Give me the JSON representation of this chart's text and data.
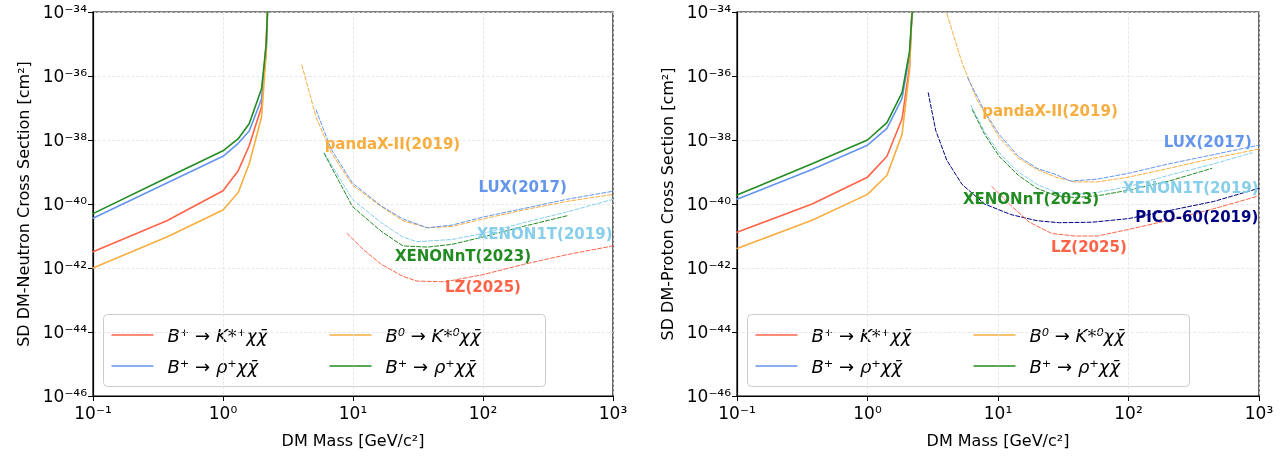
{
  "chart_data": [
    {
      "type": "line",
      "xlabel": "DM Mass [GeV/c²]",
      "ylabel": "SD DM-Neutron Cross Section [cm²]",
      "log": "xy",
      "grid": true,
      "legend": "bottom left",
      "xlim": [
        0.1,
        1000
      ],
      "xticks": [
        {
          "value": 0.1,
          "label": "10⁻¹"
        },
        {
          "value": 1,
          "label": "10⁰"
        },
        {
          "value": 10,
          "label": "10¹"
        },
        {
          "value": 100,
          "label": "10²"
        },
        {
          "value": 1000,
          "label": "10³"
        }
      ],
      "ylim": [
        1e-46,
        1e-34
      ],
      "yticks": [
        {
          "value": 1e-46,
          "label": "10⁻⁴⁶"
        },
        {
          "value": 1e-44,
          "label": "10⁻⁴⁴"
        },
        {
          "value": 1e-42,
          "label": "10⁻⁴²"
        },
        {
          "value": 1e-40,
          "label": "10⁻⁴⁰"
        },
        {
          "value": 1e-38,
          "label": "10⁻³⁸"
        },
        {
          "value": 1e-36,
          "label": "10⁻³⁶"
        },
        {
          "value": 1e-34,
          "label": "10⁻³⁴"
        }
      ],
      "series": [
        {
          "name": "B⁺ → K*⁺χχ̄",
          "color": "#ff6347",
          "line_style": "solid",
          "x": [
            0.1,
            0.37,
            1,
            1.31,
            1.59,
            1.98,
            2.15,
            2.19
          ],
          "values": [
            3.2e-42,
            3e-41,
            2.6e-40,
            1.1e-39,
            6.6e-39,
            1.1e-37,
            1.2e-35,
            1e-34
          ]
        },
        {
          "name": "B⁺ → ρ⁺χχ̄",
          "color": "#6495ed",
          "line_style": "solid",
          "x": [
            0.1,
            0.37,
            1,
            1.31,
            1.59,
            1.98,
            2.15,
            2.2
          ],
          "values": [
            3.6e-41,
            4.5e-40,
            3.1e-39,
            7.9e-39,
            1.9e-38,
            1.9e-37,
            5.4e-36,
            1e-34
          ]
        },
        {
          "name": "B⁰ → K*⁰χχ̄",
          "color": "#f8ad3f",
          "line_style": "solid",
          "x": [
            0.1,
            0.37,
            1,
            1.31,
            1.59,
            1.98,
            2.15,
            2.19
          ],
          "values": [
            1e-42,
            9.3e-42,
            6.5e-41,
            2.3e-40,
            1.8e-39,
            5.2e-38,
            5.4e-36,
            1e-34
          ]
        },
        {
          "name": "B⁺ → ρ⁺χχ̄",
          "color": "#228b22",
          "line_style": "solid",
          "x": [
            0.1,
            0.37,
            1,
            1.31,
            1.59,
            1.98,
            2.15,
            2.2
          ],
          "values": [
            5e-41,
            6.6e-40,
            4.6e-39,
            1.1e-38,
            3.2e-38,
            4e-37,
            1e-35,
            1e-34
          ]
        },
        {
          "name": "pandaX-II(2019)",
          "color": "#f8ad3f",
          "line_style": "dashed",
          "x": [
            4.04,
            5.2,
            6.8,
            9.9,
            16.5,
            24.2,
            37.5,
            58,
            100,
            205,
            440,
            1000
          ],
          "values": [
            2.2e-36,
            5.2e-38,
            4e-39,
            3.9e-40,
            8.3e-41,
            3e-41,
            1.8e-41,
            2e-41,
            3.4e-41,
            6.5e-41,
            1.2e-40,
            2e-40
          ]
        },
        {
          "name": "LUX(2017)",
          "color": "#6495ed",
          "line_style": "dashed",
          "x": [
            5.2,
            6.8,
            9.9,
            16.5,
            24.2,
            37.5,
            58,
            100,
            205,
            440,
            1000
          ],
          "values": [
            8.7e-38,
            5.1e-39,
            4.5e-40,
            8.7e-41,
            3.4e-41,
            1.8e-41,
            2.2e-41,
            3.9e-41,
            7.2e-41,
            1.4e-40,
            2.5e-40
          ]
        },
        {
          "name": "XENON1T(2019)",
          "color": "#87ceeb",
          "line_style": "dashed",
          "x": [
            6.0,
            9.9,
            16.5,
            24.2,
            31,
            58,
            100,
            205,
            440,
            1000
          ],
          "values": [
            4e-39,
            1.4e-40,
            2.6e-41,
            9.3e-42,
            6.6e-42,
            7.8e-42,
            1.2e-41,
            2.6e-41,
            5.6e-41,
            1.4e-40
          ]
        },
        {
          "name": "XENONnT(2023)",
          "color": "#228b22",
          "line_style": "dashed",
          "x": [
            6.0,
            9.9,
            16.5,
            24.2,
            37.5,
            58,
            100,
            205,
            455
          ],
          "values": [
            3.8e-39,
            8.3e-41,
            1.4e-41,
            4.9e-42,
            4.5e-42,
            5.5e-42,
            9.3e-42,
            2e-41,
            4.4e-41
          ]
        },
        {
          "name": "LZ(2025)",
          "color": "#ff6347",
          "line_style": "dashed",
          "x": [
            9.0,
            12.0,
            16.5,
            24.2,
            31,
            51,
            100,
            205,
            440,
            1000
          ],
          "values": [
            1.2e-41,
            3.8e-42,
            1.3e-42,
            5.5e-43,
            3.9e-43,
            3.7e-43,
            6.2e-43,
            1.3e-42,
            2.6e-42,
            4.9e-42
          ]
        }
      ]
    },
    {
      "type": "line",
      "xlabel": "DM Mass [GeV/c²]",
      "ylabel": "SD DM-Proton Cross Section [cm²]",
      "log": "xy",
      "grid": true,
      "legend": "bottom left",
      "xlim": [
        0.1,
        1000
      ],
      "xticks": [
        {
          "value": 0.1,
          "label": "10⁻¹"
        },
        {
          "value": 1,
          "label": "10⁰"
        },
        {
          "value": 10,
          "label": "10¹"
        },
        {
          "value": 100,
          "label": "10²"
        },
        {
          "value": 1000,
          "label": "10³"
        }
      ],
      "ylim": [
        1e-46,
        1e-34
      ],
      "yticks": [
        {
          "value": 1e-46,
          "label": "10⁻⁴⁶"
        },
        {
          "value": 1e-44,
          "label": "10⁻⁴⁴"
        },
        {
          "value": 1e-42,
          "label": "10⁻⁴²"
        },
        {
          "value": 1e-40,
          "label": "10⁻⁴⁰"
        },
        {
          "value": 1e-38,
          "label": "10⁻³⁸"
        },
        {
          "value": 1e-36,
          "label": "10⁻³⁶"
        },
        {
          "value": 1e-34,
          "label": "10⁻³⁴"
        }
      ],
      "series": [
        {
          "name": "B⁺ → K*⁺χχ̄",
          "color": "#ff6347",
          "line_style": "solid",
          "x": [
            0.1,
            0.376,
            1,
            1.41,
            1.84,
            2.1,
            2.19
          ],
          "values": [
            1.3e-41,
            1e-40,
            6.9e-40,
            3.1e-39,
            4.6e-38,
            2e-36,
            1e-34
          ]
        },
        {
          "name": "B⁺ → ρ⁺χχ̄",
          "color": "#6495ed",
          "line_style": "solid",
          "x": [
            0.1,
            0.376,
            1,
            1.41,
            1.84,
            2.1,
            2.2
          ],
          "values": [
            1.4e-40,
            1.2e-39,
            6.9e-39,
            2.3e-38,
            2e-37,
            4.5e-36,
            1e-34
          ]
        },
        {
          "name": "B⁰ → K*⁰χχ̄",
          "color": "#f8ad3f",
          "line_style": "solid",
          "x": [
            0.1,
            0.376,
            1,
            1.41,
            1.84,
            2.1,
            2.19
          ],
          "values": [
            4.1e-42,
            3.1e-41,
            2e-40,
            7.9e-40,
            1.5e-38,
            1.5e-36,
            1e-34
          ]
        },
        {
          "name": "B⁺ → ρ⁺χχ̄",
          "color": "#228b22",
          "line_style": "solid",
          "x": [
            0.1,
            0.376,
            1,
            1.41,
            1.84,
            2.1,
            2.2
          ],
          "values": [
            1.9e-40,
            1.8e-39,
            1e-38,
            3.5e-38,
            3e-37,
            5.9e-36,
            1e-34
          ]
        },
        {
          "name": "pandaX-II(2019)",
          "color": "#f8ad3f",
          "line_style": "dashed",
          "x": [
            4.06,
            5.3,
            6.9,
            10.2,
            14.3,
            19.9,
            27.8,
            38.8,
            57.7,
            100,
            204,
            450,
            1000
          ],
          "values": [
            8.7e-35,
            2.6e-36,
            1.8e-37,
            1.2e-38,
            2.7e-39,
            1.2e-39,
            6.9e-40,
            4.9e-40,
            4.9e-40,
            6.9e-40,
            1.3e-39,
            2.7e-39,
            5.2e-39
          ]
        },
        {
          "name": "LUX(2017)",
          "color": "#6495ed",
          "line_style": "dashed",
          "x": [
            5.85,
            7.9,
            10.2,
            14.3,
            19.9,
            27.8,
            36,
            57.7,
            100,
            204,
            450,
            1000
          ],
          "values": [
            8.9e-37,
            7.8e-38,
            1.5e-38,
            3.1e-39,
            1.3e-39,
            8.3e-40,
            5.2e-40,
            6e-40,
            9.1e-40,
            1.8e-39,
            3.5e-39,
            6.9e-39
          ]
        },
        {
          "name": "XENON1T(2019)",
          "color": "#87ceeb",
          "line_style": "dashed",
          "x": [
            6.2,
            7.9,
            10.2,
            14.3,
            19.9,
            27.8,
            38.8,
            57.7,
            100,
            204,
            450,
            890
          ],
          "values": [
            1.2e-37,
            1.8e-38,
            4e-39,
            1e-39,
            4.1e-40,
            2.3e-40,
            2e-40,
            2.3e-40,
            3.5e-40,
            7.9e-40,
            1.8e-39,
            4e-39
          ]
        },
        {
          "name": "XENONnT(2023)",
          "color": "#228b22",
          "line_style": "dashed",
          "x": [
            6.35,
            7.9,
            10.2,
            14.3,
            19.9,
            27.8,
            38.8,
            57.7,
            100,
            204,
            435
          ],
          "values": [
            8.9e-38,
            1.5e-38,
            3.1e-39,
            7.9e-40,
            3.1e-40,
            1.8e-40,
            1.6e-40,
            1.8e-40,
            2.7e-40,
            5.2e-40,
            1.3e-39
          ]
        },
        {
          "name": "PICO-60(2019)",
          "color": "#000080",
          "line_style": "dashed",
          "x": [
            2.92,
            3.33,
            4.06,
            5.3,
            7.9,
            12.5,
            19.9,
            29.6,
            53,
            100,
            204,
            450,
            1000
          ],
          "values": [
            3e-37,
            2e-38,
            2.3e-39,
            4.1e-40,
            1e-40,
            4.7e-41,
            3e-41,
            2.6e-41,
            2.7e-41,
            3.5e-41,
            6.2e-41,
            1.2e-40,
            3.1e-40
          ]
        },
        {
          "name": "LZ(2025)",
          "color": "#ff6347",
          "line_style": "dashed",
          "x": [
            9.0,
            12.5,
            17.4,
            25.8,
            38.8,
            57.7,
            100,
            204,
            450,
            1000
          ],
          "values": [
            3.5e-40,
            9.1e-41,
            2.7e-41,
            1.2e-41,
            1e-41,
            1e-41,
            1.6e-41,
            3.1e-41,
            7.1e-41,
            1.8e-40
          ]
        }
      ]
    }
  ]
}
